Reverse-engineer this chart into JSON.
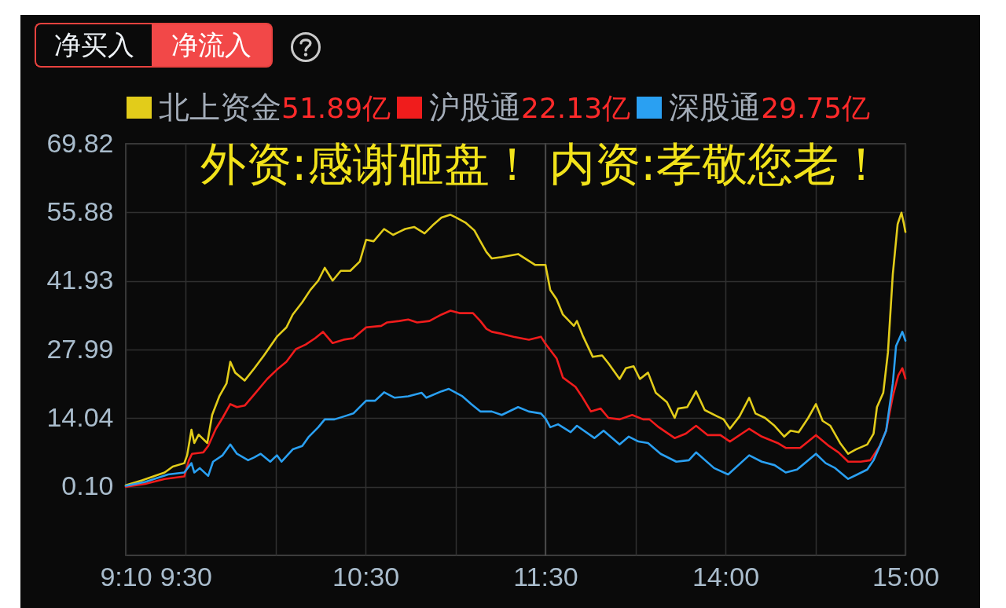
{
  "chart_data": [
    {
      "type": "line",
      "annotations": [
        "净买入",
        "净流入",
        "51.89亿",
        "22.13亿",
        "29.75亿",
        "外资:感谢砸盘！ 内资:孝敬您老！"
      ],
      "xlim": [
        9.1667,
        11.5
      ],
      "xticks": [
        {
          "value": 9.1667,
          "label": "9:10"
        },
        {
          "value": 9.5,
          "label": "9:30"
        },
        {
          "value": 10,
          "label": null
        },
        {
          "value": 10.5,
          "label": "10:30"
        },
        {
          "value": 11,
          "label": null
        },
        {
          "value": 11.5,
          "label": "11:30"
        }
      ],
      "ylim": [
        -13.84,
        69.82
      ],
      "yticks": [
        {
          "value": 0.1,
          "label": "0.10"
        },
        14.04,
        27.99,
        41.93,
        55.88,
        69.82
      ],
      "grid": true,
      "legend": "top",
      "series": [
        {
          "name": "北上资金",
          "color": "#e2cc1a",
          "x": [
            9.1667,
            9.257,
            9.383,
            9.428,
            9.492,
            9.508,
            9.532,
            9.548,
            9.572,
            9.62,
            9.647,
            9.687,
            9.727,
            9.748,
            9.775,
            9.828,
            9.882,
            9.935,
            10.007,
            10.06,
            10.095,
            10.148,
            10.193,
            10.237,
            10.273,
            10.317,
            10.362,
            10.415,
            10.468,
            10.503,
            10.545,
            10.603,
            10.653,
            10.72,
            10.77,
            10.828,
            10.872,
            10.922,
            10.972,
            11.005,
            11.055,
            11.105,
            11.138,
            11.172,
            11.202,
            11.257,
            11.348,
            11.442,
            11.5
          ],
          "values": [
            0.4,
            1.4,
            3.0,
            4.2,
            4.9,
            6.5,
            11.7,
            9.0,
            10.7,
            9.0,
            14.7,
            18.5,
            21.1,
            25.5,
            23.3,
            21.7,
            24.2,
            26.8,
            30.6,
            32.5,
            35.1,
            37.6,
            40.1,
            42.0,
            44.6,
            42.0,
            44.0,
            44.0,
            45.9,
            50.3,
            50.0,
            52.5,
            51.3,
            52.5,
            52.9,
            51.6,
            53.2,
            54.8,
            55.4,
            54.8,
            53.8,
            52.2,
            50.0,
            47.8,
            46.5,
            46.8,
            47.4,
            45.2,
            45.2
          ]
        },
        {
          "name": "沪股通",
          "color": "#f01c1c",
          "x": [
            9.1667,
            9.275,
            9.383,
            9.492,
            9.518,
            9.535,
            9.598,
            9.625,
            9.668,
            9.705,
            9.748,
            9.785,
            9.828,
            9.882,
            9.953,
            10.007,
            10.06,
            10.113,
            10.167,
            10.22,
            10.263,
            10.317,
            10.378,
            10.432,
            10.503,
            10.587,
            10.62,
            10.687,
            10.737,
            10.787,
            10.855,
            10.922,
            10.972,
            11.022,
            11.097,
            11.138,
            11.172,
            11.202,
            11.257,
            11.323,
            11.408,
            11.475,
            11.5
          ],
          "values": [
            0.1,
            0.7,
            1.7,
            2.2,
            5.5,
            6.8,
            7.1,
            8.4,
            11.9,
            14.1,
            16.9,
            16.3,
            16.6,
            18.9,
            22.0,
            23.9,
            25.5,
            28.1,
            29.0,
            30.3,
            31.6,
            29.3,
            30.0,
            30.3,
            32.5,
            32.8,
            33.5,
            33.8,
            34.1,
            33.5,
            33.8,
            35.1,
            35.9,
            35.4,
            35.4,
            33.8,
            32.2,
            31.6,
            31.2,
            30.6,
            30.0,
            30.6,
            29.2
          ]
        },
        {
          "name": "深股通",
          "color": "#2aa0f2",
          "x": [
            9.1667,
            9.275,
            9.402,
            9.492,
            9.532,
            9.548,
            9.578,
            9.625,
            9.652,
            9.705,
            9.748,
            9.785,
            9.847,
            9.882,
            9.917,
            9.97,
            10.007,
            10.033,
            10.095,
            10.148,
            10.185,
            10.237,
            10.273,
            10.327,
            10.38,
            10.432,
            10.503,
            10.553,
            10.603,
            10.662,
            10.737,
            10.812,
            10.838,
            10.922,
            10.963,
            11.038,
            11.088,
            11.138,
            11.202,
            11.257,
            11.348,
            11.408,
            11.475,
            11.5
          ],
          "values": [
            0.3,
            1.1,
            2.6,
            3.0,
            4.9,
            3.0,
            3.9,
            2.3,
            5.2,
            6.5,
            8.7,
            6.8,
            5.5,
            6.1,
            6.8,
            5.2,
            6.5,
            5.2,
            7.7,
            8.4,
            10.3,
            12.2,
            13.8,
            13.8,
            14.4,
            15.0,
            17.6,
            17.6,
            19.3,
            18.2,
            18.5,
            19.2,
            18.2,
            19.5,
            20.0,
            18.5,
            16.9,
            15.4,
            15.4,
            14.7,
            16.3,
            15.4,
            15.0,
            14.0
          ]
        }
      ]
    },
    {
      "type": "line",
      "xlim": [
        13.0,
        15
      ],
      "xticks": [
        {
          "value": 13.5,
          "label": null
        },
        {
          "value": 14,
          "label": "14:00"
        },
        {
          "value": 14.5,
          "label": null
        },
        {
          "value": 15,
          "label": "15:00"
        }
      ],
      "ylim": [
        -13.84,
        69.82
      ],
      "yticks": [
        {
          "value": 0.1,
          "label": null
        },
        {
          "value": 14.04,
          "label": null
        },
        {
          "value": 27.99,
          "label": null
        },
        {
          "value": 41.93,
          "label": null
        },
        {
          "value": 55.88,
          "label": null
        },
        {
          "value": 69.82,
          "label": null
        }
      ],
      "grid": true,
      "tick_labels": "x",
      "series": [
        {
          "color": "#e2cc1a",
          "x": [
            13.0,
            13.027,
            13.062,
            13.097,
            13.158,
            13.175,
            13.21,
            13.263,
            13.315,
            13.35,
            13.412,
            13.447,
            13.49,
            13.525,
            13.57,
            13.613,
            13.675,
            13.718,
            13.737,
            13.788,
            13.837,
            13.885,
            13.955,
            13.99,
            14.025,
            14.078,
            14.132,
            14.167,
            14.22,
            14.273,
            14.327,
            14.362,
            14.407,
            14.46,
            14.503,
            14.54,
            14.583,
            14.637,
            14.682,
            14.725,
            14.788,
            14.823,
            14.842,
            14.877,
            14.903,
            14.93,
            14.957,
            14.978,
            14.992,
            15
          ],
          "values": [
            45.2,
            40.1,
            38.2,
            35.1,
            32.8,
            33.8,
            30.6,
            26.5,
            26.8,
            25.2,
            22.0,
            24.2,
            24.6,
            22.0,
            23.3,
            19.2,
            17.3,
            14.1,
            16.0,
            16.3,
            19.5,
            15.7,
            14.4,
            13.8,
            11.9,
            14.4,
            18.2,
            15.0,
            14.1,
            12.5,
            10.3,
            11.5,
            11.2,
            14.1,
            16.9,
            13.5,
            12.5,
            9.0,
            6.8,
            7.7,
            8.7,
            10.9,
            16.3,
            19.2,
            27.4,
            43.3,
            53.5,
            55.8,
            53.5,
            51.9
          ]
        },
        {
          "color": "#f01c1c",
          "x": [
            13.0,
            13.062,
            13.097,
            13.167,
            13.202,
            13.253,
            13.307,
            13.35,
            13.412,
            13.482,
            13.543,
            13.578,
            13.63,
            13.718,
            13.78,
            13.837,
            13.902,
            13.972,
            14.025,
            14.132,
            14.202,
            14.29,
            14.335,
            14.415,
            14.503,
            14.575,
            14.628,
            14.682,
            14.752,
            14.805,
            14.858,
            14.893,
            14.93,
            14.96,
            14.983,
            15
          ],
          "values": [
            29.2,
            26.2,
            22.3,
            20.4,
            18.5,
            15.4,
            16.0,
            14.1,
            13.8,
            14.7,
            13.8,
            13.8,
            12.2,
            10.0,
            10.9,
            12.5,
            10.6,
            10.6,
            9.3,
            11.9,
            10.3,
            9.0,
            8.0,
            8.0,
            10.6,
            8.4,
            7.1,
            5.2,
            5.2,
            5.5,
            8.4,
            11.5,
            18.5,
            22.7,
            24.2,
            22.1
          ]
        },
        {
          "color": "#2aa0f2",
          "x": [
            13.0,
            13.027,
            13.07,
            13.14,
            13.175,
            13.272,
            13.323,
            13.412,
            13.463,
            13.517,
            13.57,
            13.64,
            13.727,
            13.797,
            13.837,
            13.937,
            14.015,
            14.132,
            14.202,
            14.273,
            14.335,
            14.398,
            14.503,
            14.557,
            14.61,
            14.682,
            14.733,
            14.788,
            14.823,
            14.858,
            14.893,
            14.93,
            14.948,
            14.983,
            15
          ],
          "values": [
            14.0,
            12.2,
            12.8,
            11.2,
            12.5,
            10.0,
            11.5,
            8.7,
            10.3,
            9.3,
            9.0,
            6.8,
            5.2,
            5.5,
            7.1,
            3.9,
            2.6,
            6.5,
            5.2,
            4.5,
            3.0,
            3.6,
            6.8,
            4.9,
            3.9,
            1.7,
            2.6,
            3.6,
            5.5,
            8.4,
            11.5,
            21.1,
            28.7,
            31.6,
            29.8
          ]
        }
      ]
    }
  ]
}
